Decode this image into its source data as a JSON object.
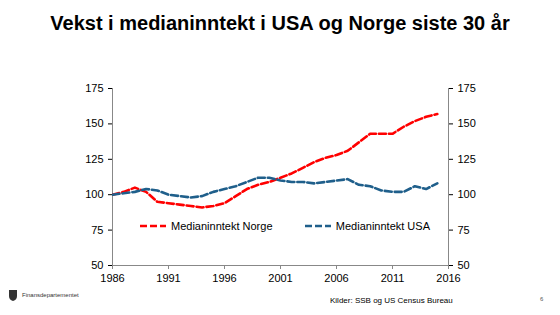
{
  "chart_data": {
    "type": "line",
    "title": "Vekst i medianinntekt i USA og Norge siste 30 år",
    "x": [
      1986,
      1987,
      1988,
      1989,
      1990,
      1991,
      1992,
      1993,
      1994,
      1995,
      1996,
      1997,
      1998,
      1999,
      2000,
      2001,
      2002,
      2003,
      2004,
      2005,
      2006,
      2007,
      2008,
      2009,
      2010,
      2011,
      2012,
      2013,
      2014,
      2015
    ],
    "series": [
      {
        "name": "Medianinntekt Norge",
        "color": "#ff0000",
        "line_style": "dashed",
        "values": [
          100,
          102,
          105,
          102,
          95,
          94,
          93,
          92,
          91,
          92,
          94,
          99,
          104,
          107,
          109,
          112,
          115,
          119,
          123,
          126,
          128,
          131,
          137,
          143,
          143,
          143,
          148,
          152,
          155,
          157
        ]
      },
      {
        "name": "Medianinntekt USA",
        "color": "#1f5f8b",
        "line_style": "dashed",
        "values": [
          100,
          101,
          102,
          104,
          103,
          100,
          99,
          98,
          99,
          102,
          104,
          106,
          109,
          112,
          112,
          110,
          109,
          109,
          108,
          109,
          110,
          111,
          107,
          106,
          103,
          102,
          102,
          106,
          104,
          108
        ]
      }
    ],
    "xlim": [
      1986,
      2016
    ],
    "xticks": [
      1986,
      1991,
      1996,
      2001,
      2006,
      2011,
      2016
    ],
    "ylim": [
      50,
      175
    ],
    "yticks": [
      50,
      75,
      100,
      125,
      150,
      175
    ],
    "y2lim": [
      50,
      175
    ],
    "y2ticks": [
      50,
      75,
      100,
      125,
      150,
      175
    ],
    "grid": false,
    "legend": "bottom",
    "source": "Kilder: SSB og US Census Bureau",
    "footer": "Finansdepartementet",
    "page_number": "6"
  }
}
